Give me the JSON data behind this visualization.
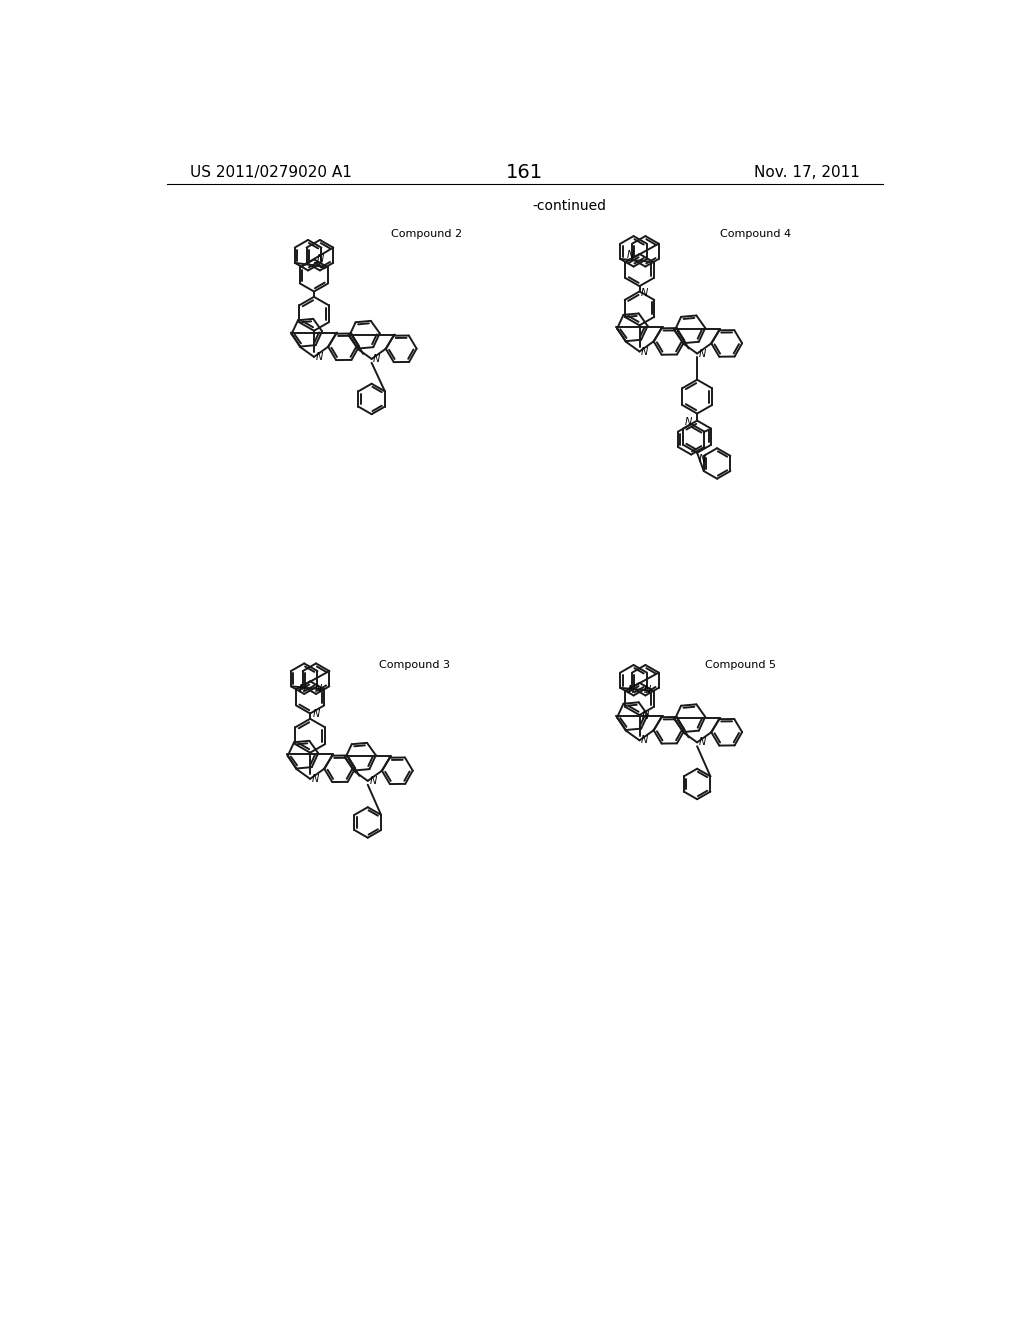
{
  "page_number": "161",
  "patent_number": "US 2011/0279020 A1",
  "patent_date": "Nov. 17, 2011",
  "continued_label": "-continued",
  "background_color": "#ffffff",
  "text_color": "#000000",
  "line_color": "#1a1a1a",
  "R": 22,
  "lw": 1.4
}
